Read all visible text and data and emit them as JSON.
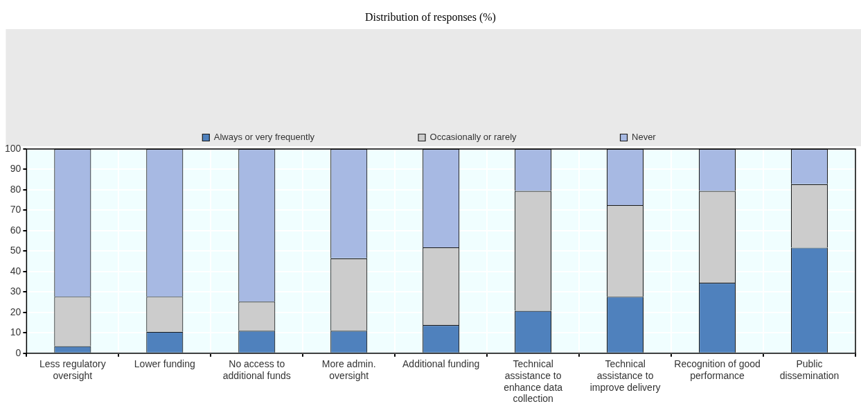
{
  "chart_data": {
    "type": "bar",
    "title": "Distribution of responses (%)",
    "stacked": true,
    "legend": "top",
    "grid": true,
    "categories": [
      "Less regulatory oversight",
      "Lower funding",
      "No access to additional funds",
      "More admin. oversight",
      "Additional funding",
      "Technical assistance to enhance data collection",
      "Technical assistance to improve delivery",
      "Recognition of good performance",
      "Public dissemination"
    ],
    "series": [
      {
        "name": "Always or very frequently",
        "color": "#4f81bd",
        "values": [
          3.5,
          10.5,
          11,
          11,
          13.8,
          20.8,
          27.7,
          34.5,
          51.7
        ]
      },
      {
        "name": "Occasionally or rarely",
        "color": "#cccccc",
        "values": [
          24.2,
          17.2,
          14.3,
          35.5,
          38,
          58.7,
          44.8,
          45,
          31.1
        ]
      },
      {
        "name": "Never",
        "color": "#a7b9e3",
        "values": [
          72.3,
          72.3,
          74.7,
          53.5,
          48.2,
          20.5,
          27.5,
          20.5,
          17.2
        ]
      }
    ],
    "ylim": [
      0,
      100
    ],
    "yticks": [
      0,
      10,
      20,
      30,
      40,
      50,
      60,
      70,
      80,
      90,
      100
    ]
  }
}
